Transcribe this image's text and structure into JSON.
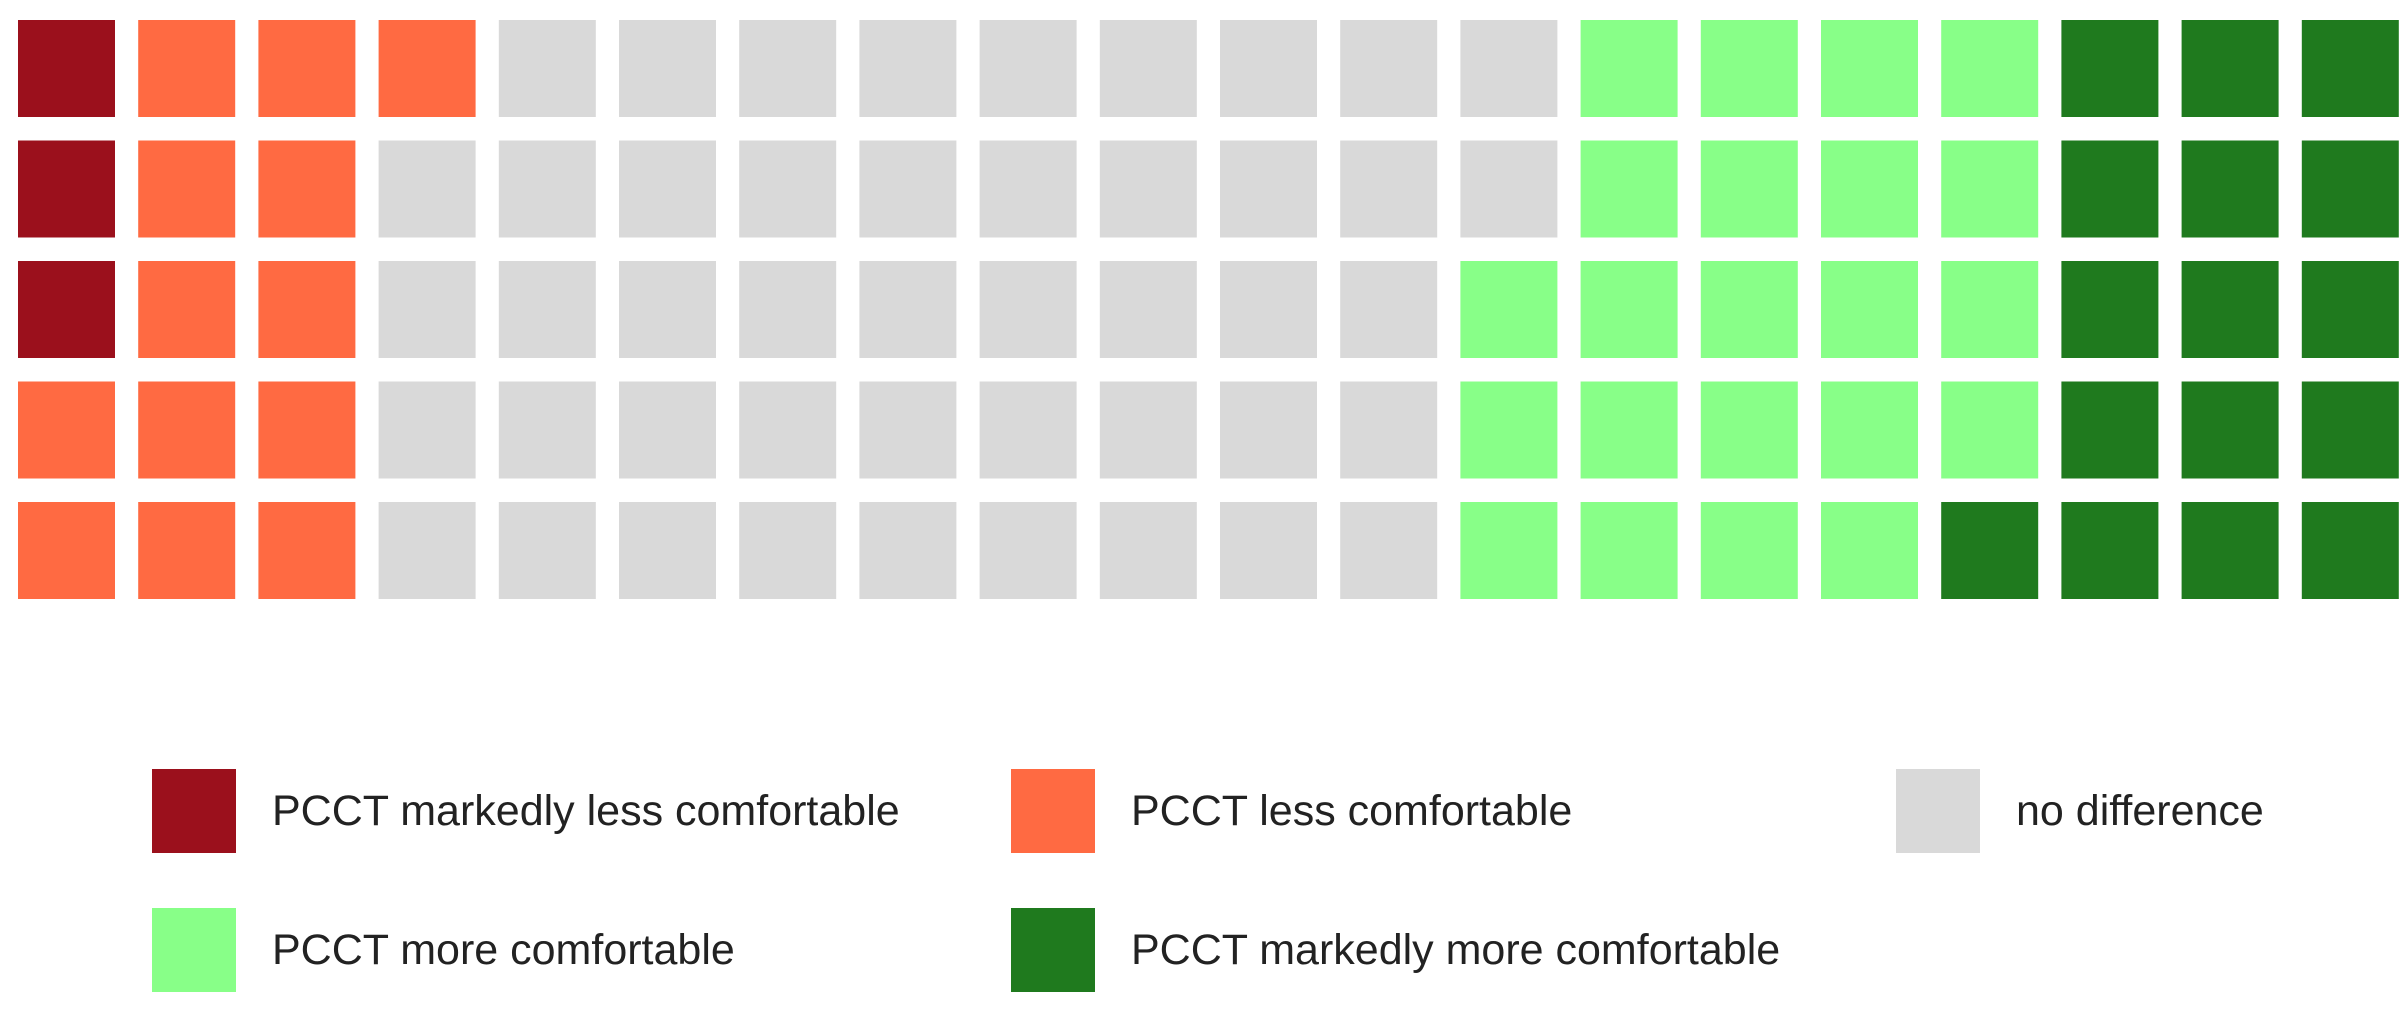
{
  "chart_data": {
    "type": "waffle",
    "rows": 5,
    "columns": 20,
    "cell_order": "column-major, top to bottom within each column, columns left to right",
    "categories": [
      "PCCT markedly less comfortable",
      "PCCT less comfortable",
      "no difference",
      "PCCT more comfortable",
      "PCCT markedly more comfortable"
    ],
    "values": [
      3,
      13,
      46,
      22,
      16
    ],
    "colors": [
      "#9B101C",
      "#FF6A42",
      "#D9D9D9",
      "#88FF88",
      "#1F7A1E"
    ],
    "legend": {
      "placement": "bottom",
      "items": [
        {
          "label": "PCCT markedly less comfortable",
          "color": "#9B101C"
        },
        {
          "label": "PCCT less comfortable",
          "color": "#FF6A42"
        },
        {
          "label": "no difference",
          "color": "#D9D9D9"
        },
        {
          "label": "PCCT more comfortable",
          "color": "#88FF88"
        },
        {
          "label": "PCCT markedly more comfortable",
          "color": "#1F7A1E"
        }
      ]
    },
    "title": "",
    "xlabel": "",
    "ylabel": ""
  }
}
